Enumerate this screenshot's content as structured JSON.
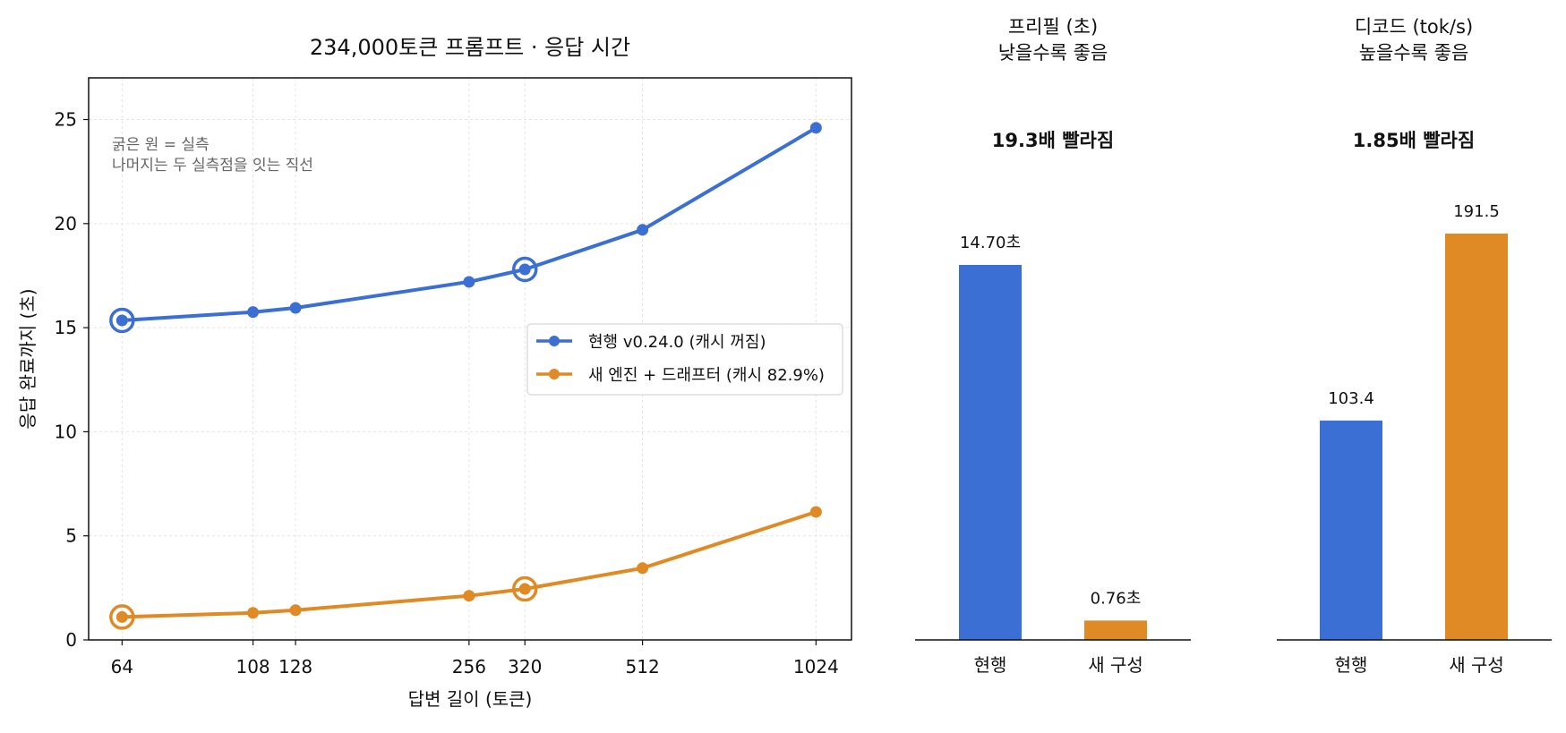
{
  "colors": {
    "current": "#3b6fd4",
    "new": "#df8a24",
    "speedup": "#b5761a"
  },
  "chart_data": [
    {
      "type": "line",
      "title": "234,000토큰 프롬프트 · 응답 시간",
      "xlabel": "답변 길이 (토큰)",
      "ylabel": "응답 완료까지 (초)",
      "x": [
        64,
        108,
        128,
        256,
        320,
        512,
        1024
      ],
      "x_tick_labels": [
        "64",
        "108",
        "128",
        "256",
        "320",
        "512",
        "1024"
      ],
      "x_scale": "log2",
      "xlim": [
        56,
        1180
      ],
      "ylim": [
        0,
        27
      ],
      "y_ticks": [
        0,
        5,
        10,
        15,
        20,
        25
      ],
      "grid": true,
      "legend_position": "center-right",
      "note": [
        "굵은 원 = 실측",
        "나머지는 두 실측점을 잇는 직선"
      ],
      "measured_x": [
        64,
        320
      ],
      "series": [
        {
          "name": "현행 v0.24.0 (캐시 꺼짐)",
          "color": "#3b6fd4",
          "values": [
            15.35,
            15.75,
            15.95,
            17.2,
            17.8,
            19.7,
            24.6
          ]
        },
        {
          "name": "새 엔진 + 드래프터 (캐시 82.9%)",
          "color": "#df8a24",
          "values": [
            1.1,
            1.3,
            1.43,
            2.12,
            2.45,
            3.45,
            6.15
          ]
        }
      ]
    },
    {
      "type": "bar",
      "title": [
        "프리필 (초)",
        "낮을수록 좋음"
      ],
      "speedup": "19.3배 빨라짐",
      "categories": [
        "현행",
        "새 구성"
      ],
      "values": [
        14.7,
        0.76
      ],
      "value_labels": [
        "14.70초",
        "0.76초"
      ],
      "colors": [
        "#3b6fd4",
        "#df8a24"
      ]
    },
    {
      "type": "bar",
      "title": [
        "디코드 (tok/s)",
        "높을수록 좋음"
      ],
      "speedup": "1.85배 빨라짐",
      "categories": [
        "현행",
        "새 구성"
      ],
      "values": [
        103.4,
        191.5
      ],
      "value_labels": [
        "103.4",
        "191.5"
      ],
      "colors": [
        "#3b6fd4",
        "#df8a24"
      ]
    }
  ]
}
